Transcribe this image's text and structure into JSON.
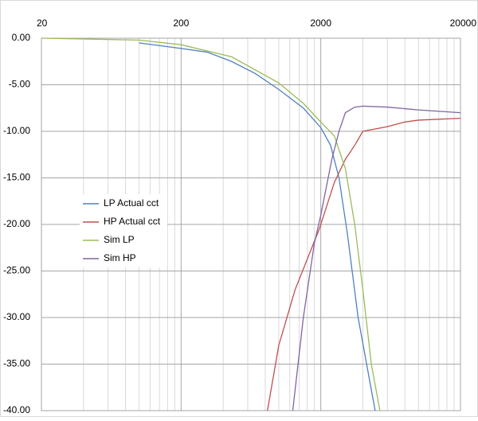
{
  "chart_data": {
    "type": "line",
    "log_x": true,
    "grid": true,
    "minor_grid": true,
    "xlim": [
      20,
      20000
    ],
    "xticks": [
      20,
      200,
      2000,
      20000
    ],
    "ylim": [
      -40,
      0
    ],
    "yticks": [
      {
        "value": 0,
        "label": "0.00"
      },
      {
        "value": -5,
        "label": "-5.00"
      },
      {
        "value": -10,
        "label": "-10.00"
      },
      {
        "value": -15,
        "label": "-15.00"
      },
      {
        "value": -20,
        "label": "-20.00"
      },
      {
        "value": -25,
        "label": "-25.00"
      },
      {
        "value": -30,
        "label": "-30.00"
      },
      {
        "value": -35,
        "label": "-35.00"
      },
      {
        "value": -40,
        "label": "-40.00"
      }
    ],
    "series": [
      {
        "name": "LP Actual cct",
        "color": "#4f81bd",
        "x": [
          100,
          200,
          308,
          460,
          680,
          1000,
          1500,
          2000,
          2350,
          2700,
          3100,
          3700,
          4900
        ],
        "values": [
          -0.5,
          -1.1,
          -1.5,
          -2.5,
          -3.8,
          -5.5,
          -7.5,
          -9.6,
          -11.5,
          -15,
          -21,
          -30,
          -40
        ]
      },
      {
        "name": "HP Actual cct",
        "color": "#c0504d",
        "x": [
          830,
          1000,
          1310,
          1950,
          2500,
          3000,
          3500,
          4000,
          6000,
          8000,
          10000,
          14000,
          20000
        ],
        "values": [
          -40,
          -33,
          -27,
          -20.5,
          -15.5,
          -13,
          -11.5,
          -10,
          -9.5,
          -9,
          -8.8,
          -8.7,
          -8.6
        ]
      },
      {
        "name": "Sim LP",
        "color": "#9bbb59",
        "x": [
          20,
          100,
          200,
          460,
          1000,
          1500,
          2000,
          2500,
          3000,
          3500,
          4000,
          4600,
          5300
        ],
        "values": [
          0,
          -0.2,
          -0.7,
          -2,
          -4.8,
          -7,
          -9,
          -10.5,
          -14,
          -20,
          -27,
          -35,
          -40
        ]
      },
      {
        "name": "Sim HP",
        "color": "#8064a2",
        "x": [
          1260,
          1500,
          1800,
          2000,
          2400,
          2700,
          3000,
          3500,
          4000,
          6000,
          10000,
          20000
        ],
        "values": [
          -40,
          -30,
          -22,
          -19,
          -13,
          -10,
          -8,
          -7.4,
          -7.3,
          -7.4,
          -7.7,
          -8
        ]
      }
    ]
  }
}
